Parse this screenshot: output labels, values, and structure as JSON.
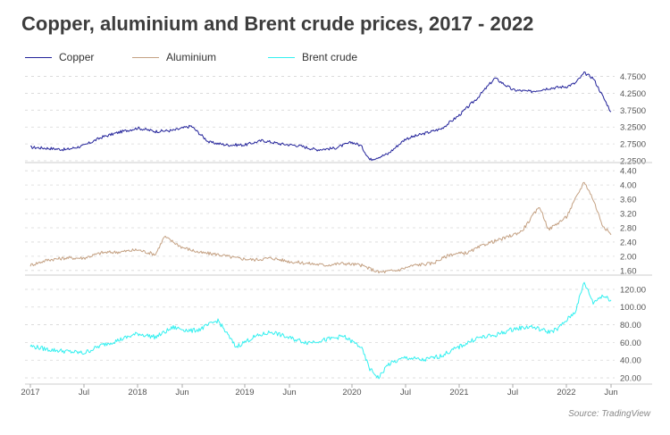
{
  "title": "Copper, aluminium and Brent crude prices, 2017 - 2022",
  "source": "Source: TradingView",
  "legend": [
    {
      "label": "Copper",
      "color": "#23239a"
    },
    {
      "label": "Aluminium",
      "color": "#c4a183"
    },
    {
      "label": "Brent crude",
      "color": "#33f0f0"
    }
  ],
  "chart_data": {
    "type": "line",
    "title": "Copper, aluminium and Brent crude prices, 2017 - 2022",
    "x_range": [
      "2017-01",
      "2022-06"
    ],
    "x_ticks": [
      "2017",
      "Jul",
      "2018",
      "Jun",
      "2019",
      "Jun",
      "2020",
      "Jul",
      "2021",
      "Jul",
      "2022",
      "Jun"
    ],
    "x_tick_dates": [
      "2017-01",
      "2017-07",
      "2018-01",
      "2018-06",
      "2019-01",
      "2019-06",
      "2020-01",
      "2020-07",
      "2021-01",
      "2021-07",
      "2022-01",
      "2022-06"
    ],
    "grid": true,
    "panels": [
      {
        "name": "Copper",
        "color": "#23239a",
        "ylim": [
          2.25,
          4.95
        ],
        "y_ticks": [
          "2.2500",
          "2.7500",
          "3.2500",
          "3.7500",
          "4.2500",
          "4.7500"
        ],
        "x": [
          "2017-01",
          "2017-03",
          "2017-05",
          "2017-07",
          "2017-09",
          "2017-11",
          "2018-01",
          "2018-03",
          "2018-05",
          "2018-07",
          "2018-09",
          "2018-11",
          "2019-01",
          "2019-03",
          "2019-05",
          "2019-07",
          "2019-09",
          "2019-11",
          "2020-01",
          "2020-02",
          "2020-03",
          "2020-05",
          "2020-07",
          "2020-09",
          "2020-11",
          "2021-01",
          "2021-03",
          "2021-05",
          "2021-07",
          "2021-09",
          "2021-11",
          "2022-01",
          "2022-02",
          "2022-03",
          "2022-04",
          "2022-05",
          "2022-06"
        ],
        "values": [
          2.65,
          2.62,
          2.58,
          2.7,
          2.95,
          3.1,
          3.22,
          3.12,
          3.15,
          3.28,
          2.8,
          2.72,
          2.72,
          2.85,
          2.75,
          2.7,
          2.58,
          2.62,
          2.8,
          2.7,
          2.28,
          2.45,
          2.9,
          3.05,
          3.2,
          3.6,
          4.1,
          4.7,
          4.35,
          4.3,
          4.4,
          4.45,
          4.55,
          4.85,
          4.7,
          4.2,
          3.7
        ]
      },
      {
        "name": "Aluminium",
        "color": "#c4a183",
        "ylim": [
          1.52,
          4.48
        ],
        "y_ticks": [
          "1.60",
          "2.00",
          "2.40",
          "2.80",
          "3.20",
          "3.60",
          "4.00",
          "4.40"
        ],
        "x": [
          "2017-01",
          "2017-03",
          "2017-05",
          "2017-07",
          "2017-09",
          "2017-11",
          "2018-01",
          "2018-03",
          "2018-04",
          "2018-06",
          "2018-08",
          "2018-10",
          "2018-12",
          "2019-02",
          "2019-04",
          "2019-06",
          "2019-08",
          "2019-10",
          "2019-12",
          "2020-02",
          "2020-04",
          "2020-06",
          "2020-08",
          "2020-10",
          "2020-12",
          "2021-02",
          "2021-04",
          "2021-06",
          "2021-08",
          "2021-10",
          "2021-11",
          "2022-01",
          "2022-03",
          "2022-04",
          "2022-05",
          "2022-06"
        ],
        "values": [
          1.75,
          1.9,
          1.95,
          1.95,
          2.1,
          2.12,
          2.18,
          2.05,
          2.55,
          2.25,
          2.1,
          2.05,
          1.95,
          1.9,
          1.95,
          1.85,
          1.8,
          1.75,
          1.8,
          1.75,
          1.55,
          1.6,
          1.75,
          1.8,
          2.05,
          2.1,
          2.35,
          2.5,
          2.7,
          3.4,
          2.75,
          3.1,
          4.1,
          3.6,
          2.9,
          2.6
        ]
      },
      {
        "name": "Brent crude",
        "color": "#33f0f0",
        "ylim": [
          15,
          130
        ],
        "y_ticks": [
          "20.00",
          "40.00",
          "60.00",
          "80.00",
          "100.00",
          "120.00"
        ],
        "x": [
          "2017-01",
          "2017-03",
          "2017-05",
          "2017-07",
          "2017-09",
          "2017-11",
          "2018-01",
          "2018-03",
          "2018-05",
          "2018-07",
          "2018-08",
          "2018-10",
          "2018-12",
          "2019-02",
          "2019-04",
          "2019-06",
          "2019-08",
          "2019-10",
          "2019-12",
          "2020-02",
          "2020-03",
          "2020-04",
          "2020-05",
          "2020-07",
          "2020-09",
          "2020-11",
          "2021-01",
          "2021-03",
          "2021-05",
          "2021-07",
          "2021-09",
          "2021-11",
          "2021-12",
          "2022-02",
          "2022-03",
          "2022-04",
          "2022-05",
          "2022-06"
        ],
        "values": [
          56,
          52,
          50,
          48,
          57,
          63,
          70,
          66,
          77,
          73,
          75,
          85,
          55,
          66,
          72,
          65,
          60,
          63,
          67,
          55,
          30,
          20,
          35,
          43,
          40,
          45,
          55,
          65,
          68,
          75,
          78,
          72,
          75,
          95,
          128,
          105,
          113,
          108
        ]
      }
    ]
  }
}
